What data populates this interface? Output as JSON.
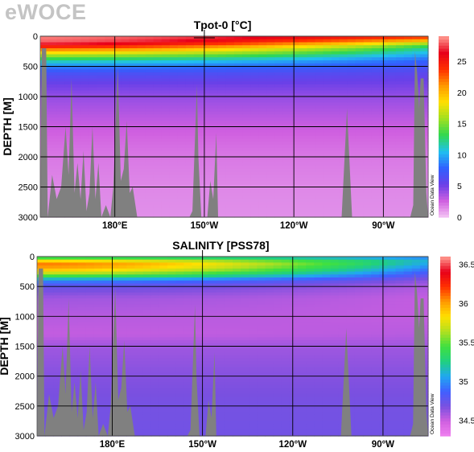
{
  "watermark": "eWOCE",
  "colors": {
    "land": "#808080",
    "grid": "#000000"
  },
  "chart_data": [
    {
      "type": "heatmap",
      "title": "Tpot-0 [°C]",
      "xlabel": "",
      "ylabel": "DEPTH [M]",
      "xlim": [
        155,
        285
      ],
      "ylim": [
        3000,
        0
      ],
      "x_ticks": [
        {
          "value": 180,
          "label": "180°E"
        },
        {
          "value": 210,
          "label": "150°W"
        },
        {
          "value": 240,
          "label": "120°W"
        },
        {
          "value": 270,
          "label": "90°W"
        }
      ],
      "y_ticks": [
        0,
        500,
        1000,
        1500,
        2000,
        2500,
        3000
      ],
      "colorbar": {
        "min": 0,
        "max": 29,
        "ticks": [
          0,
          5,
          10,
          15,
          20,
          25
        ],
        "credit": "Ocean Data View"
      },
      "scale_colors": [
        "#f4c6f4",
        "#d060e0",
        "#6a40e8",
        "#3060ff",
        "#20c0f0",
        "#30d850",
        "#a0e020",
        "#ffe000",
        "#ff9a00",
        "#ff3000",
        "#e8001a",
        "#ff9a90"
      ],
      "profile": {
        "depth": [
          0,
          50,
          100,
          150,
          200,
          300,
          400,
          500,
          600,
          700,
          800,
          1000,
          1200,
          1500,
          2000,
          2500,
          3000
        ],
        "west": [
          28.5,
          28.3,
          28,
          26,
          23,
          17,
          12,
          9,
          7,
          6,
          5.2,
          4.2,
          3.6,
          2.8,
          2.0,
          1.6,
          1.4
        ],
        "east": [
          24,
          22,
          18,
          14,
          12,
          10,
          8,
          7,
          6,
          5.4,
          5,
          4.2,
          3.6,
          2.8,
          2.0,
          1.6,
          1.4
        ]
      }
    },
    {
      "type": "heatmap",
      "title": "SALINITY [PSS78]",
      "xlabel": "",
      "ylabel": "DEPTH [M]",
      "xlim": [
        155,
        285
      ],
      "ylim": [
        3000,
        0
      ],
      "x_ticks": [
        {
          "value": 180,
          "label": "180°E"
        },
        {
          "value": 210,
          "label": "150°W"
        },
        {
          "value": 240,
          "label": "120°W"
        },
        {
          "value": 270,
          "label": "90°W"
        }
      ],
      "y_ticks": [
        0,
        500,
        1000,
        1500,
        2000,
        2500,
        3000
      ],
      "colorbar": {
        "min": 34.3,
        "max": 36.6,
        "ticks": [
          34.5,
          35,
          35.5,
          36,
          36.5
        ],
        "credit": "Ocean Data View"
      },
      "scale_colors": [
        "#f080f0",
        "#d060e0",
        "#7a50e0",
        "#4060ff",
        "#20a8f0",
        "#20d080",
        "#40e040",
        "#b0e020",
        "#ffe000",
        "#ff9a00",
        "#ff3000",
        "#e8001a",
        "#ff9a90"
      ],
      "profile": {
        "depth": [
          0,
          50,
          100,
          200,
          300,
          400,
          500,
          700,
          1000,
          1300,
          1500,
          2000,
          2500,
          3000
        ],
        "west": [
          35.3,
          35.6,
          36.1,
          36.0,
          35.6,
          35.0,
          34.75,
          34.6,
          34.55,
          34.52,
          34.6,
          34.66,
          34.7,
          34.71
        ],
        "east": [
          34.9,
          35.1,
          35.1,
          34.95,
          34.8,
          34.65,
          34.57,
          34.52,
          34.52,
          34.55,
          34.6,
          34.66,
          34.7,
          34.71
        ]
      }
    }
  ]
}
